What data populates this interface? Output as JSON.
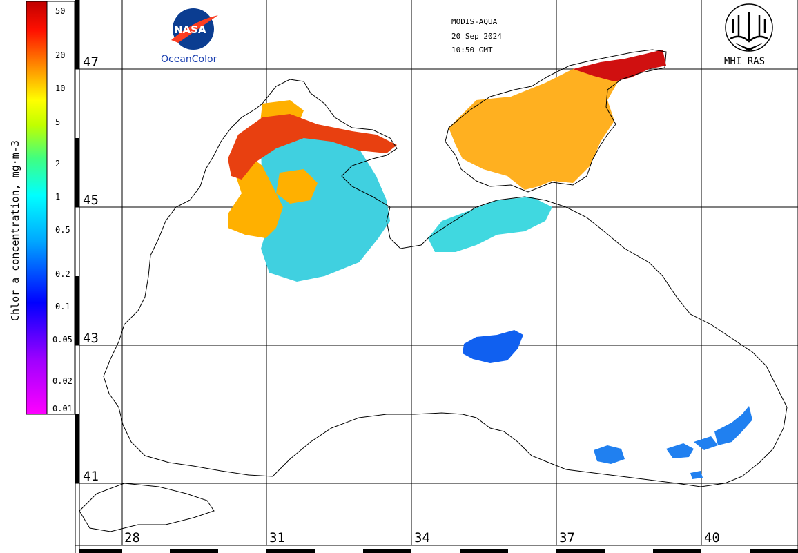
{
  "header": {
    "sensor": "MODIS-AQUA",
    "date": "20 Sep 2024",
    "time": "10:50 GMT"
  },
  "logos": {
    "nasa": {
      "text": "NASA",
      "caption": "OceanColor",
      "color": "#0b3d91",
      "swoosh": "#fc3d21"
    },
    "mhi": {
      "caption": "MHI RAS"
    }
  },
  "colorbar": {
    "title": "Chlor_a concentration, mg·m-3",
    "ticks": [
      "50",
      "20",
      "10",
      "5",
      "2",
      "1",
      "0.5",
      "0.2",
      "0.1",
      "0.05",
      "0.02",
      "0.01"
    ],
    "colors": [
      "#ff00ff",
      "#8000ff",
      "#0000ff",
      "#00a0ff",
      "#00ffff",
      "#00ff80",
      "#80ff00",
      "#ffff00",
      "#ff8000",
      "#ff0000",
      "#c00000"
    ]
  },
  "grid": {
    "latitudes": [
      "47",
      "45",
      "43",
      "41"
    ],
    "longitudes": [
      "28",
      "31",
      "34",
      "37",
      "40"
    ]
  },
  "map_data": {
    "region": "Black Sea",
    "lat_range": [
      40.0,
      48.0
    ],
    "lon_range": [
      26.3,
      41.8
    ],
    "patches": [
      {
        "name": "northwest-shelf-high",
        "color": "#e84010"
      },
      {
        "name": "northwest-shelf-mid",
        "color": "#ffb000"
      },
      {
        "name": "northwest-shelf-low",
        "color": "#40d0e0"
      },
      {
        "name": "azov-sea",
        "color": "#ffb020"
      },
      {
        "name": "azov-sea-high",
        "color": "#d01010"
      },
      {
        "name": "kerch-south",
        "color": "#40d8e0"
      },
      {
        "name": "central-blue",
        "color": "#1060f0"
      },
      {
        "name": "southeast-blue",
        "color": "#2080f0"
      }
    ]
  }
}
